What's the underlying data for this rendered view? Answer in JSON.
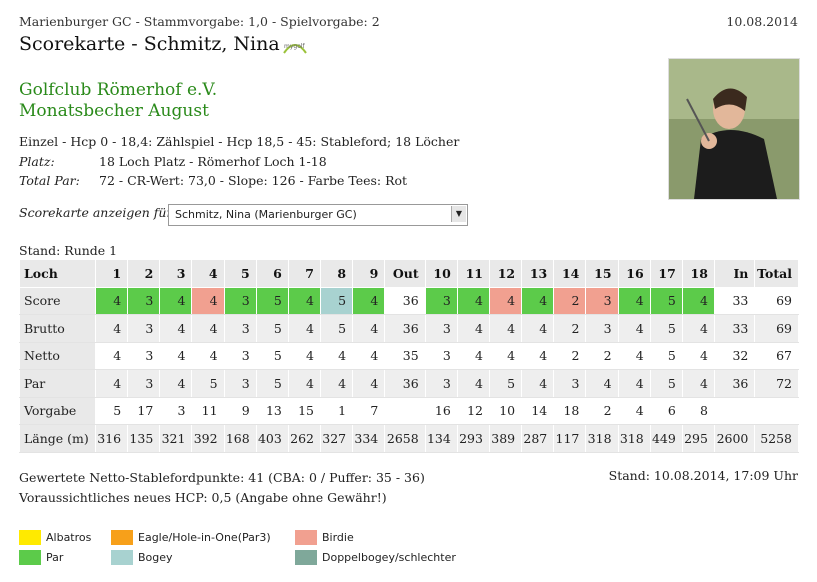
{
  "header": {
    "subtitle": "Marienburger GC - Stammvorgabe: 1,0 - Spielvorgabe: 2",
    "date": "10.08.2014",
    "title": "Scorekarte - Schmitz, Nina",
    "logo_text": "mygolf"
  },
  "club": {
    "name": "Golfclub Römerhof e.V.",
    "event": "Monatsbecher August"
  },
  "info": {
    "line1": "Einzel - Hcp 0 - 18,4: Zählspiel - Hcp 18,5 - 45: Stableford; 18 Löcher",
    "platz_label": "Platz:",
    "platz_value": "18 Loch Platz - Römerhof Loch 1-18",
    "par_label": "Total Par:",
    "par_value": "72 - CR-Wert: 73,0 - Slope: 126 - Farbe Tees: Rot"
  },
  "selector": {
    "label": "Scorekarte anzeigen für:",
    "value": "Schmitz, Nina (Marienburger GC)"
  },
  "stand": "Stand: Runde 1",
  "table": {
    "headers": [
      "Loch",
      "1",
      "2",
      "3",
      "4",
      "5",
      "6",
      "7",
      "8",
      "9",
      "Out",
      "10",
      "11",
      "12",
      "13",
      "14",
      "15",
      "16",
      "17",
      "18",
      "In",
      "Total"
    ],
    "rows": [
      {
        "label": "Score",
        "values": [
          "4",
          "3",
          "4",
          "4",
          "3",
          "5",
          "4",
          "5",
          "4",
          "36",
          "3",
          "4",
          "4",
          "4",
          "2",
          "3",
          "4",
          "5",
          "4",
          "33",
          "69"
        ]
      },
      {
        "label": "Brutto",
        "values": [
          "4",
          "3",
          "4",
          "4",
          "3",
          "5",
          "4",
          "5",
          "4",
          "36",
          "3",
          "4",
          "4",
          "4",
          "2",
          "3",
          "4",
          "5",
          "4",
          "33",
          "69"
        ]
      },
      {
        "label": "Netto",
        "values": [
          "4",
          "3",
          "4",
          "4",
          "3",
          "5",
          "4",
          "4",
          "4",
          "35",
          "3",
          "4",
          "4",
          "4",
          "2",
          "2",
          "4",
          "5",
          "4",
          "32",
          "67"
        ]
      },
      {
        "label": "Par",
        "values": [
          "4",
          "3",
          "4",
          "5",
          "3",
          "5",
          "4",
          "4",
          "4",
          "36",
          "3",
          "4",
          "5",
          "4",
          "3",
          "4",
          "4",
          "5",
          "4",
          "36",
          "72"
        ]
      },
      {
        "label": "Vorgabe",
        "values": [
          "5",
          "17",
          "3",
          "11",
          "9",
          "13",
          "15",
          "1",
          "7",
          "",
          "16",
          "12",
          "10",
          "14",
          "18",
          "2",
          "4",
          "6",
          "8",
          "",
          ""
        ]
      },
      {
        "label": "Länge (m)",
        "values": [
          "316",
          "135",
          "321",
          "392",
          "168",
          "403",
          "262",
          "327",
          "334",
          "2658",
          "134",
          "293",
          "389",
          "287",
          "117",
          "318",
          "318",
          "449",
          "295",
          "2600",
          "5258"
        ]
      }
    ],
    "score_colors": [
      "par",
      "par",
      "par",
      "birdie",
      "par",
      "par",
      "par",
      "bogey",
      "par",
      "",
      "par",
      "par",
      "birdie",
      "par",
      "birdie",
      "birdie",
      "par",
      "par",
      "par",
      "",
      ""
    ]
  },
  "colors": {
    "par": "#5ccb4a",
    "birdie": "#f1a090",
    "bogey": "#a8d2d0",
    "albatros": "#ffea00",
    "eagle": "#f7a01a",
    "doppelbogey": "#7fa89a"
  },
  "footer": {
    "points": "Gewertete Netto-Stablefordpunkte: 41 (CBA: 0 / Puffer: 35 - 36)",
    "hcp": "Voraussichtliches neues HCP: 0,5 (Angabe ohne Gewähr!)",
    "stand": "Stand: 10.08.2014, 17:09 Uhr"
  },
  "legend": [
    {
      "label": "Albatros",
      "color": "#ffea00"
    },
    {
      "label": "Eagle/Hole-in-One(Par3)",
      "color": "#f7a01a"
    },
    {
      "label": "Birdie",
      "color": "#f1a090"
    },
    {
      "label": "Par",
      "color": "#5ccb4a"
    },
    {
      "label": "Bogey",
      "color": "#a8d2d0"
    },
    {
      "label": "Doppelbogey/schlechter",
      "color": "#7fa89a"
    }
  ]
}
